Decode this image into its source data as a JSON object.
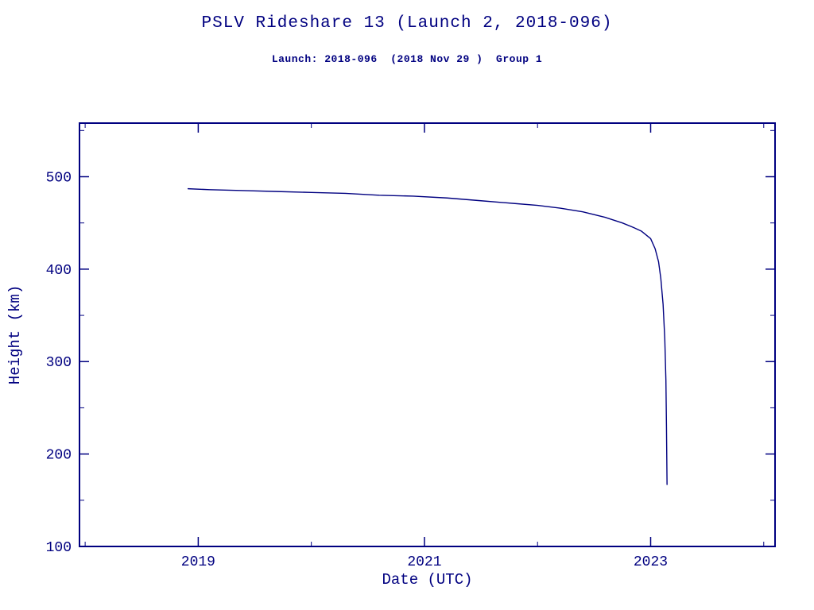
{
  "page": {
    "background": "#ffffff",
    "accent_color": "#000080"
  },
  "chart_data": {
    "type": "line",
    "title": "PSLV Rideshare 13 (Launch 2, 2018-096)",
    "subtitle": "Launch: 2018-096  (2018 Nov 29 )  Group 1",
    "xlabel": "Date (UTC)",
    "ylabel": "Height (km)",
    "xlim": [
      2017.95,
      2024.1
    ],
    "ylim": [
      100,
      558
    ],
    "x_major_ticks": [
      2019,
      2021,
      2023
    ],
    "x_major_tick_labels": [
      "2019",
      "2021",
      "2023"
    ],
    "x_minor_ticks": [
      2018,
      2020,
      2022,
      2024
    ],
    "y_major_ticks": [
      100,
      200,
      300,
      400,
      500
    ],
    "y_major_tick_labels": [
      "100",
      "200",
      "300",
      "400",
      "500"
    ],
    "y_minor_ticks": [
      150,
      250,
      350,
      450,
      550
    ],
    "grid": false,
    "legend": "none",
    "line_color": "#000080",
    "axis_color": "#000080",
    "series": [
      {
        "name": "orbital-height",
        "x": [
          2018.91,
          2019.1,
          2019.4,
          2019.7,
          2020.0,
          2020.3,
          2020.6,
          2020.9,
          2021.2,
          2021.5,
          2021.8,
          2022.0,
          2022.2,
          2022.4,
          2022.6,
          2022.75,
          2022.85,
          2022.92,
          2023.0,
          2023.04,
          2023.07,
          2023.09,
          2023.11,
          2023.125,
          2023.135,
          2023.14,
          2023.145
        ],
        "y": [
          487,
          486,
          485,
          484,
          483,
          482,
          480,
          479,
          477,
          474,
          471,
          469,
          466,
          462,
          456,
          450,
          445,
          441,
          433,
          422,
          408,
          390,
          362,
          325,
          280,
          230,
          167
        ]
      }
    ]
  }
}
